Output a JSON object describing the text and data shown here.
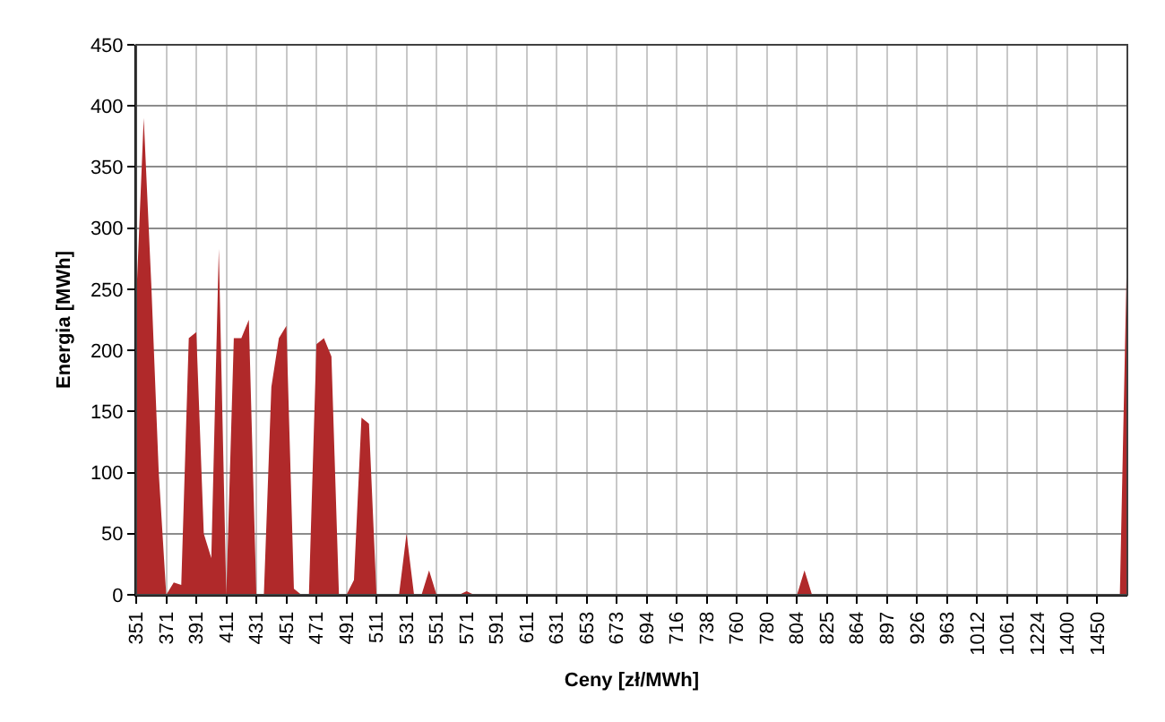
{
  "chart_data": {
    "type": "area",
    "xlabel": "Ceny [zł/MWh]",
    "ylabel": "Energia [MWh]",
    "categories": [
      "351",
      null,
      null,
      null,
      "371",
      null,
      null,
      null,
      "391",
      null,
      null,
      null,
      "411",
      null,
      null,
      null,
      "431",
      null,
      null,
      null,
      "451",
      null,
      null,
      null,
      "471",
      null,
      null,
      null,
      "491",
      null,
      null,
      null,
      "511",
      null,
      null,
      null,
      "531",
      null,
      null,
      null,
      "551",
      null,
      null,
      null,
      "571",
      null,
      null,
      null,
      "591",
      null,
      null,
      null,
      "611",
      null,
      null,
      null,
      "631",
      null,
      null,
      null,
      "653",
      null,
      null,
      null,
      "673",
      null,
      null,
      null,
      "694",
      null,
      null,
      null,
      "716",
      null,
      null,
      null,
      "738",
      null,
      null,
      null,
      "760",
      null,
      null,
      null,
      "780",
      null,
      null,
      null,
      "804",
      null,
      null,
      null,
      "825",
      null,
      null,
      null,
      "864",
      null,
      null,
      null,
      "897",
      null,
      null,
      null,
      "926",
      null,
      null,
      null,
      "963",
      null,
      null,
      null,
      "1012",
      null,
      null,
      null,
      "1061",
      null,
      null,
      null,
      "1224",
      null,
      null,
      null,
      "1400",
      null,
      null,
      null,
      "1450",
      null,
      null,
      null,
      null
    ],
    "values": [
      240,
      390,
      255,
      100,
      0,
      10,
      8,
      210,
      215,
      50,
      30,
      283,
      0,
      210,
      210,
      225,
      0,
      0,
      170,
      210,
      220,
      5,
      0,
      0,
      205,
      210,
      195,
      0,
      0,
      12,
      145,
      140,
      0,
      0,
      0,
      0,
      50,
      0,
      0,
      20,
      0,
      0,
      0,
      0,
      3,
      0,
      0,
      0,
      0,
      0,
      0,
      0,
      0,
      0,
      0,
      0,
      0,
      0,
      0,
      0,
      0,
      0,
      0,
      0,
      0,
      0,
      0,
      0,
      0,
      0,
      0,
      0,
      0,
      0,
      0,
      0,
      0,
      0,
      0,
      0,
      0,
      0,
      0,
      0,
      0,
      0,
      0,
      0,
      0,
      20,
      0,
      0,
      0,
      0,
      0,
      0,
      0,
      0,
      0,
      0,
      0,
      0,
      0,
      0,
      0,
      0,
      0,
      0,
      0,
      0,
      0,
      0,
      0,
      0,
      0,
      0,
      0,
      0,
      0,
      0,
      0,
      0,
      0,
      0,
      0,
      0,
      0,
      0,
      0,
      0,
      0,
      0,
      295
    ],
    "color": "#b0292a",
    "ylim": [
      0,
      450
    ],
    "yticks": [
      0,
      50,
      100,
      150,
      200,
      250,
      300,
      350,
      400,
      450
    ],
    "grid": true,
    "legend": false
  }
}
